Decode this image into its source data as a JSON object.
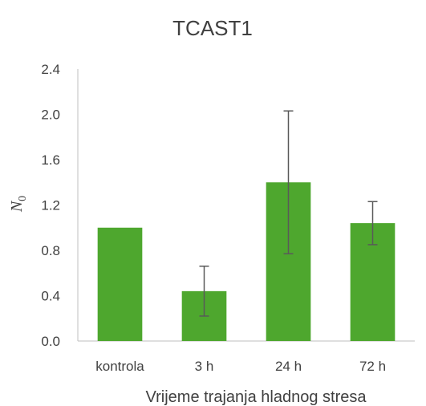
{
  "chart_data": {
    "type": "bar",
    "title": "TCAST1",
    "xlabel": "Vrijeme trajanja hladnog stresa",
    "ylabel": "N",
    "ylabel_subscript": "0",
    "categories": [
      "kontrola",
      "3 h",
      "24 h",
      "72 h"
    ],
    "values": [
      1.0,
      0.44,
      1.4,
      1.04
    ],
    "error_bars": [
      {
        "low": null,
        "high": null
      },
      {
        "low": 0.22,
        "high": 0.66
      },
      {
        "low": 0.77,
        "high": 2.03
      },
      {
        "low": 0.85,
        "high": 1.23
      }
    ],
    "ylim": [
      0,
      2.4
    ],
    "yticks": [
      "0.0",
      "0.4",
      "0.8",
      "1.2",
      "1.6",
      "2.0",
      "2.4"
    ],
    "grid": false,
    "legend": "none",
    "colors": {
      "bar": "#4ea72e",
      "error": "#595959",
      "axis": "#bfbfbf",
      "text": "#404040"
    }
  }
}
